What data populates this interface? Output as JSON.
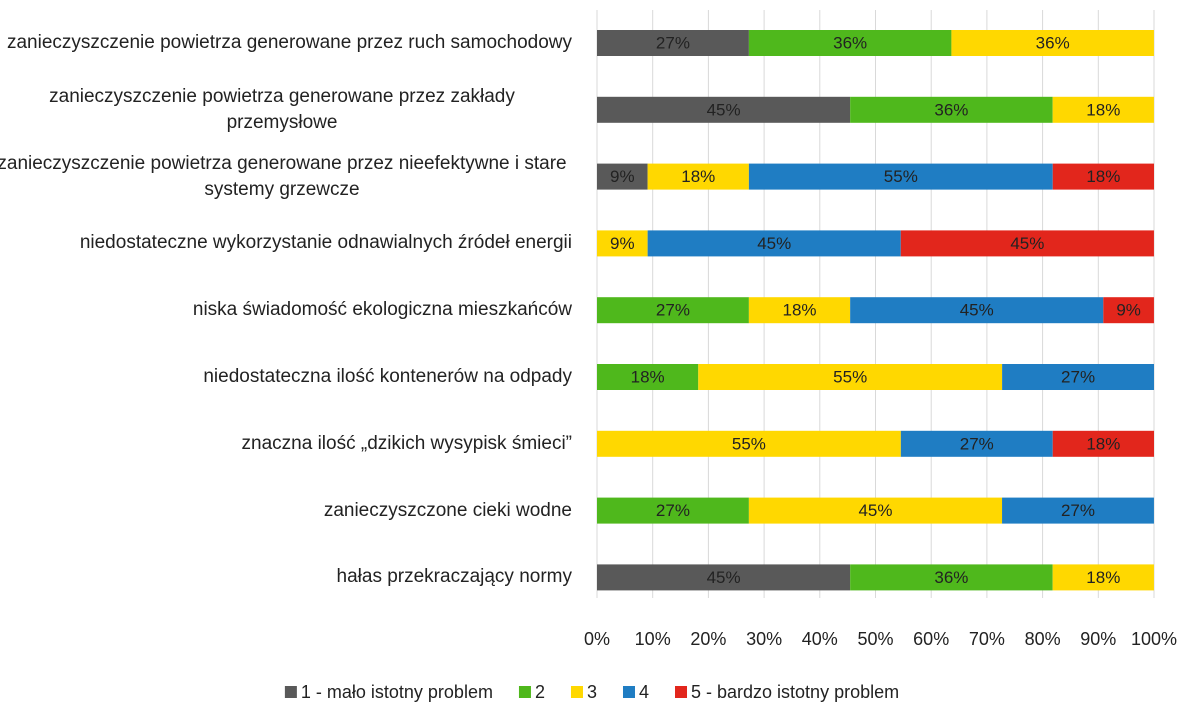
{
  "chart_data": {
    "type": "stacked_bar_horizontal",
    "categories": [
      "zanieczyszczenie powietrza generowane przez ruch samochodowy",
      "zanieczyszczenie powietrza generowane przez zakłady przemysłowe",
      "zanieczyszczenie powietrza generowane przez nieefektywne i stare systemy grzewcze",
      "niedostateczne wykorzystanie odnawialnych źródeł energii",
      "niska świadomość ekologiczna mieszkańców",
      "niedostateczna ilość kontenerów na odpady",
      "znaczna ilość „dzikich wysypisk śmieci”",
      "zanieczyszczone cieki wodne",
      "hałas przekraczający normy"
    ],
    "series": [
      {
        "name": "1 - mało istotny problem",
        "color": "#595959",
        "values": [
          27.27,
          45.45,
          9.09,
          null,
          null,
          null,
          null,
          null,
          45.45
        ],
        "value_labels": [
          "27%",
          "45%",
          "9%",
          null,
          null,
          null,
          null,
          null,
          "45%"
        ]
      },
      {
        "name": "2",
        "color": "#4fb81c",
        "values": [
          36.36,
          36.36,
          null,
          null,
          27.27,
          18.18,
          null,
          27.27,
          36.36
        ],
        "value_labels": [
          "36%",
          "36%",
          null,
          null,
          "27%",
          "18%",
          null,
          "27%",
          "36%"
        ]
      },
      {
        "name": "3",
        "color": "#ffd800",
        "values": [
          36.36,
          18.18,
          18.18,
          9.09,
          18.18,
          54.55,
          54.55,
          45.45,
          18.18
        ],
        "value_labels": [
          "36%",
          "18%",
          "18%",
          "9%",
          "18%",
          "55%",
          "55%",
          "45%",
          "18%"
        ]
      },
      {
        "name": "4",
        "color": "#1f7dc3",
        "values": [
          null,
          null,
          54.55,
          45.45,
          45.45,
          27.27,
          27.27,
          27.27,
          null
        ],
        "value_labels": [
          null,
          null,
          "55%",
          "45%",
          "45%",
          "27%",
          "27%",
          "27%",
          null
        ]
      },
      {
        "name": "5 - bardzo istotny problem",
        "color": "#e2261c",
        "values": [
          null,
          null,
          18.18,
          45.45,
          9.09,
          null,
          18.18,
          null,
          null
        ],
        "value_labels": [
          null,
          null,
          "18%",
          "45%",
          "9%",
          null,
          "18%",
          null,
          null
        ]
      }
    ],
    "xlim": [
      0,
      100
    ],
    "xticks": [
      {
        "value": 0,
        "label": "0%"
      },
      {
        "value": 10,
        "label": "10%"
      },
      {
        "value": 20,
        "label": "20%"
      },
      {
        "value": 30,
        "label": "30%"
      },
      {
        "value": 40,
        "label": "40%"
      },
      {
        "value": 50,
        "label": "50%"
      },
      {
        "value": 60,
        "label": "60%"
      },
      {
        "value": 70,
        "label": "70%"
      },
      {
        "value": 80,
        "label": "80%"
      },
      {
        "value": 90,
        "label": "90%"
      },
      {
        "value": 100,
        "label": "100%"
      }
    ],
    "grid": true,
    "legend": "bottom"
  }
}
